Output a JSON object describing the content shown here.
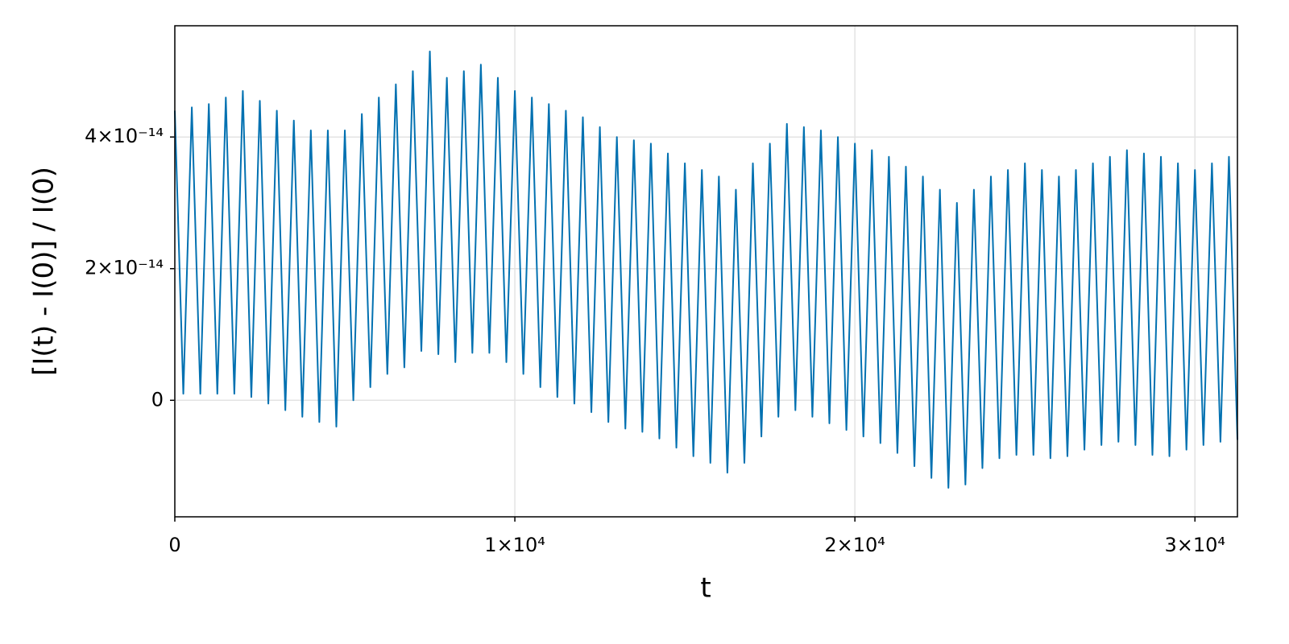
{
  "chart_data": {
    "type": "line",
    "x_label": "t",
    "y_label": "[I(t) - I(0)] / I(0)",
    "x": [
      0,
      250,
      500,
      750,
      1000,
      1250,
      1500,
      1750,
      2000,
      2250,
      2500,
      2750,
      3000,
      3250,
      3500,
      3750,
      4000,
      4250,
      4500,
      4750,
      5000,
      5250,
      5500,
      5750,
      6000,
      6250,
      6500,
      6750,
      7000,
      7250,
      7500,
      7750,
      8000,
      8250,
      8500,
      8750,
      9000,
      9250,
      9500,
      9750,
      10000,
      10250,
      10500,
      10750,
      11000,
      11250,
      11500,
      11750,
      12000,
      12250,
      12500,
      12750,
      13000,
      13250,
      13500,
      13750,
      14000,
      14250,
      14500,
      14750,
      15000,
      15250,
      15500,
      15750,
      16000,
      16250,
      16500,
      16750,
      17000,
      17250,
      17500,
      17750,
      18000,
      18250,
      18500,
      18750,
      19000,
      19250,
      19500,
      19750,
      20000,
      20250,
      20500,
      20750,
      21000,
      21250,
      21500,
      21750,
      22000,
      22250,
      22500,
      22750,
      23000,
      23250,
      23500,
      23750,
      24000,
      24250,
      24500,
      24750,
      25000,
      25250,
      25500,
      25750,
      26000,
      26250,
      26500,
      26750,
      27000,
      27250,
      27500,
      27750,
      28000,
      28250,
      28500,
      28750,
      29000,
      29250,
      29500,
      29750,
      30000,
      30250,
      30500,
      30750,
      31000,
      31250
    ],
    "series": [
      {
        "color": "#0271b1",
        "values": [
          4.4e-14,
          1e-15,
          4.45e-14,
          1e-15,
          4.5e-14,
          1e-15,
          4.6e-14,
          1e-15,
          4.7e-14,
          5e-16,
          4.55e-14,
          -5e-16,
          4.4e-14,
          -1.5e-15,
          4.25e-14,
          -2.5e-15,
          4.1e-14,
          -3.3e-15,
          4.1e-14,
          -4e-15,
          4.1e-14,
          0,
          4.35e-14,
          2e-15,
          4.6e-14,
          4e-15,
          4.8e-14,
          5e-15,
          5e-14,
          7.5e-15,
          5.3e-14,
          7e-15,
          4.9e-14,
          5.8e-15,
          5e-14,
          7.2e-15,
          5.1e-14,
          7.2e-15,
          4.9e-14,
          5.8e-15,
          4.7e-14,
          4e-15,
          4.6e-14,
          2e-15,
          4.5e-14,
          5e-16,
          4.4e-14,
          -5e-16,
          4.3e-14,
          -1.8e-15,
          4.15e-14,
          -3.3e-15,
          4e-14,
          -4.3e-15,
          3.95e-14,
          -4.8e-15,
          3.9e-14,
          -5.8e-15,
          3.75e-14,
          -7.2e-15,
          3.6e-14,
          -8.5e-15,
          3.5e-14,
          -9.5e-15,
          3.4e-14,
          -1.1e-14,
          3.2e-14,
          -9.5e-15,
          3.6e-14,
          -5.5e-15,
          3.9e-14,
          -2.5e-15,
          4.2e-14,
          -1.5e-15,
          4.15e-14,
          -2.5e-15,
          4.1e-14,
          -3.5e-15,
          4e-14,
          -4.5e-15,
          3.9e-14,
          -5.5e-15,
          3.8e-14,
          -6.5e-15,
          3.7e-14,
          -8e-15,
          3.55e-14,
          -1e-14,
          3.4e-14,
          -1.18e-14,
          3.2e-14,
          -1.33e-14,
          3e-14,
          -1.28e-14,
          3.2e-14,
          -1.03e-14,
          3.4e-14,
          -8.8e-15,
          3.5e-14,
          -8.3e-15,
          3.6e-14,
          -8.3e-15,
          3.5e-14,
          -8.8e-15,
          3.4e-14,
          -8.5e-15,
          3.5e-14,
          -7.5e-15,
          3.6e-14,
          -6.8e-15,
          3.7e-14,
          -6.3e-15,
          3.8e-14,
          -6.8e-15,
          3.75e-14,
          -8.3e-15,
          3.7e-14,
          -8.5e-15,
          3.6e-14,
          -7.5e-15,
          3.5e-14,
          -6.8e-15,
          3.6e-14,
          -6.3e-15,
          3.7e-14,
          -6e-15
        ]
      }
    ],
    "xlim": [
      0,
      31250
    ],
    "xticks": [
      0,
      {
        "value": 10000,
        "label": "1×10⁴"
      },
      {
        "value": 20000,
        "label": "2×10⁴"
      },
      {
        "value": 30000,
        "label": "3×10⁴"
      }
    ],
    "ylim": [
      -1.77e-14,
      5.69e-14
    ],
    "yticks": [
      0,
      {
        "value": 2e-14,
        "label": "2×10⁻¹⁴"
      },
      {
        "value": 4e-14,
        "label": "4×10⁻¹⁴"
      }
    ],
    "grid": true
  }
}
